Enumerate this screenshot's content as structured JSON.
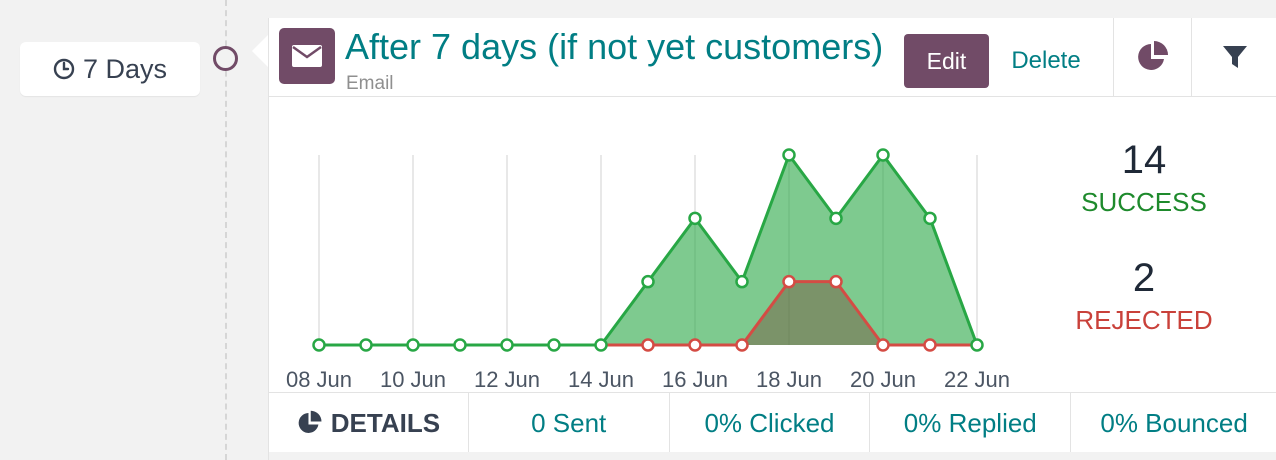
{
  "interval": {
    "label": "7 Days",
    "icon": "clock-icon"
  },
  "activity": {
    "title": "After 7 days (if not yet customers)",
    "type": "Email",
    "icon": "envelope-icon"
  },
  "actions": {
    "edit_label": "Edit",
    "delete_label": "Delete"
  },
  "tabs": [
    {
      "name": "graph",
      "icon": "pie-chart-icon",
      "active": true
    },
    {
      "name": "filter",
      "icon": "filter-icon",
      "active": false
    }
  ],
  "stats": {
    "success_count": "14",
    "success_label": "SUCCESS",
    "rejected_count": "2",
    "rejected_label": "REJECTED"
  },
  "footer": {
    "details_label": "DETAILS",
    "sent": "0 Sent",
    "clicked": "0% Clicked",
    "replied": "0% Replied",
    "bounced": "0% Bounced"
  },
  "colors": {
    "primary": "#714b67",
    "link": "#017e84",
    "success": "#28a745",
    "rejected": "#d44c44"
  },
  "chart_data": {
    "type": "area",
    "x": [
      "08 Jun",
      "09 Jun",
      "10 Jun",
      "11 Jun",
      "12 Jun",
      "13 Jun",
      "14 Jun",
      "15 Jun",
      "16 Jun",
      "17 Jun",
      "18 Jun",
      "19 Jun",
      "20 Jun",
      "21 Jun",
      "22 Jun"
    ],
    "tick_labels": [
      "08 Jun",
      "10 Jun",
      "12 Jun",
      "14 Jun",
      "16 Jun",
      "18 Jun",
      "20 Jun",
      "22 Jun"
    ],
    "ylim": [
      0,
      3
    ],
    "grid": true,
    "series": [
      {
        "values": [
          0,
          0,
          0,
          0,
          0,
          0,
          0,
          1,
          2,
          1,
          3,
          2,
          3,
          2,
          0
        ],
        "color": "#28a745"
      },
      {
        "values": [
          0,
          0,
          0,
          0,
          0,
          0,
          0,
          0,
          0,
          0,
          1,
          1,
          0,
          0,
          0
        ],
        "color": "#d44c44"
      }
    ]
  }
}
